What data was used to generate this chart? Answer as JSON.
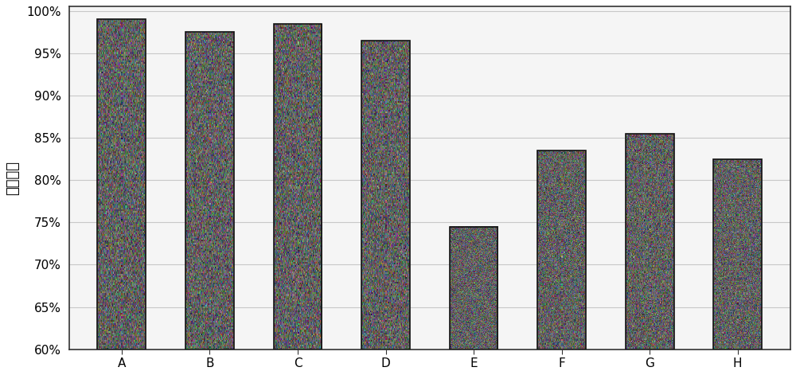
{
  "categories": [
    "A",
    "B",
    "C",
    "D",
    "E",
    "F",
    "G",
    "H"
  ],
  "values": [
    99.0,
    97.5,
    98.5,
    96.5,
    74.5,
    83.5,
    85.5,
    82.5
  ],
  "bar_color_base": "#555555",
  "ylabel": "活细胞率",
  "ylim_min": 0.6,
  "ylim_max": 1.005,
  "yticks": [
    0.6,
    0.65,
    0.7,
    0.75,
    0.8,
    0.85,
    0.9,
    0.95,
    1.0
  ],
  "ytick_labels": [
    "60%",
    "65%",
    "70%",
    "75%",
    "80%",
    "85%",
    "90%",
    "95%",
    "100%"
  ],
  "background_color": "#ffffff",
  "plot_bg_color": "#f5f5f5",
  "bar_width": 0.55,
  "grid_color": "#c8c8c8",
  "ylabel_fontsize": 13,
  "tick_fontsize": 11,
  "border_color": "#333333"
}
